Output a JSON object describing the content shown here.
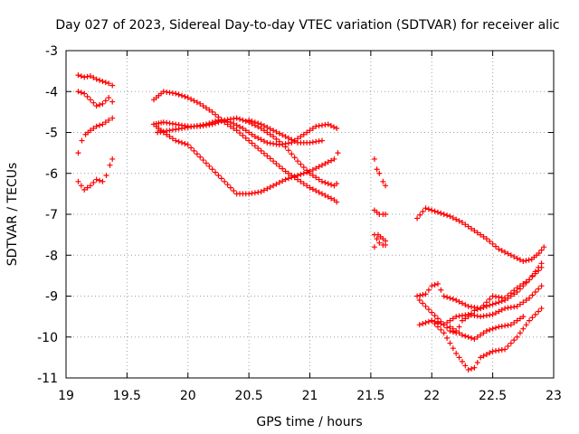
{
  "chart_data": {
    "type": "scatter",
    "title": "Day 027 of 2023, Sidereal Day-to-day VTEC variation (SDTVAR) for receiver alic",
    "xlabel": "GPS time / hours",
    "ylabel": "SDTVAR / TECUs",
    "xlim": [
      19,
      23
    ],
    "ylim": [
      -11,
      -3
    ],
    "xticks": [
      19,
      19.5,
      20,
      20.5,
      21,
      21.5,
      22,
      22.5,
      23
    ],
    "xtick_labels": [
      "19",
      "19.5",
      "20",
      "20.5",
      "21",
      "21.5",
      "22",
      "22.5",
      "23"
    ],
    "yticks": [
      -11,
      -10,
      -9,
      -8,
      -7,
      -6,
      -5,
      -4,
      -3
    ],
    "ytick_labels": [
      "-11",
      "-10",
      "-9",
      "-8",
      "-7",
      "-6",
      "-5",
      "-4",
      "-3"
    ],
    "grid": true,
    "marker": "+",
    "marker_color": "#ff0000",
    "series": [
      {
        "name": "a1",
        "x": [
          19.1,
          19.15,
          19.2,
          19.25,
          19.3,
          19.35,
          19.38
        ],
        "y": [
          -3.6,
          -3.65,
          -3.62,
          -3.7,
          -3.75,
          -3.8,
          -3.85
        ]
      },
      {
        "name": "a2",
        "x": [
          19.1,
          19.15,
          19.2,
          19.25,
          19.3,
          19.35,
          19.38
        ],
        "y": [
          -4.0,
          -4.05,
          -4.2,
          -4.35,
          -4.3,
          -4.15,
          -4.25
        ]
      },
      {
        "name": "a3",
        "x": [
          19.1,
          19.13,
          19.16,
          19.2,
          19.25,
          19.3,
          19.35,
          19.38
        ],
        "y": [
          -5.5,
          -5.2,
          -5.05,
          -4.95,
          -4.85,
          -4.8,
          -4.7,
          -4.65
        ]
      },
      {
        "name": "a4",
        "x": [
          19.1,
          19.15,
          19.2,
          19.25,
          19.3,
          19.33,
          19.36,
          19.38
        ],
        "y": [
          -6.2,
          -6.4,
          -6.3,
          -6.15,
          -6.2,
          -6.05,
          -5.8,
          -5.65
        ]
      },
      {
        "name": "b1",
        "x": [
          19.72,
          19.8,
          19.9,
          20.0,
          20.1,
          20.2,
          20.3,
          20.4,
          20.5,
          20.6,
          20.7,
          20.8,
          20.9,
          21.0,
          21.1,
          21.2,
          21.22
        ],
        "y": [
          -4.2,
          -4.0,
          -4.05,
          -4.15,
          -4.3,
          -4.5,
          -4.75,
          -4.95,
          -5.2,
          -5.45,
          -5.7,
          -5.95,
          -6.15,
          -6.35,
          -6.5,
          -6.65,
          -6.7
        ]
      },
      {
        "name": "b2",
        "x": [
          19.72,
          19.8,
          19.9,
          20.0,
          20.1,
          20.2,
          20.3,
          20.4,
          20.5,
          20.6,
          20.7,
          20.8,
          20.9,
          21.0,
          21.1,
          21.2,
          21.22
        ],
        "y": [
          -4.8,
          -4.75,
          -4.8,
          -4.85,
          -4.85,
          -4.8,
          -4.7,
          -4.65,
          -4.75,
          -4.9,
          -5.1,
          -5.35,
          -5.7,
          -6.0,
          -6.2,
          -6.3,
          -6.25
        ]
      },
      {
        "name": "b3",
        "x": [
          19.72,
          19.8,
          19.9,
          20.0,
          20.1,
          20.2,
          20.3,
          20.4,
          20.5,
          20.6,
          20.7,
          20.8,
          20.9,
          21.0,
          21.1,
          21.2,
          21.23
        ],
        "y": [
          -4.8,
          -5.0,
          -5.2,
          -5.3,
          -5.6,
          -5.9,
          -6.2,
          -6.5,
          -6.5,
          -6.45,
          -6.3,
          -6.15,
          -6.05,
          -5.95,
          -5.8,
          -5.65,
          -5.5
        ]
      },
      {
        "name": "b4",
        "x": [
          19.75,
          19.85,
          19.95,
          20.05,
          20.15,
          20.25,
          20.35,
          20.45,
          20.55,
          20.65,
          20.75,
          20.85,
          20.95,
          21.05,
          21.15,
          21.22
        ],
        "y": [
          -5.0,
          -4.95,
          -4.9,
          -4.85,
          -4.8,
          -4.7,
          -4.75,
          -4.9,
          -5.1,
          -5.25,
          -5.3,
          -5.25,
          -5.05,
          -4.85,
          -4.8,
          -4.9
        ]
      },
      {
        "name": "b5",
        "x": [
          20.5,
          20.6,
          20.7,
          20.8,
          20.9,
          21.0,
          21.1
        ],
        "y": [
          -4.7,
          -4.8,
          -4.95,
          -5.1,
          -5.25,
          -5.25,
          -5.2
        ]
      },
      {
        "name": "c1",
        "x": [
          21.53,
          21.55,
          21.57,
          21.6,
          21.62
        ],
        "y": [
          -5.65,
          -5.9,
          -6.0,
          -6.2,
          -6.3
        ]
      },
      {
        "name": "c2",
        "x": [
          21.53,
          21.55,
          21.57,
          21.6,
          21.62
        ],
        "y": [
          -6.9,
          -6.95,
          -7.0,
          -7.0,
          -7.0
        ]
      },
      {
        "name": "c3",
        "x": [
          21.53,
          21.55,
          21.57,
          21.6,
          21.62
        ],
        "y": [
          -7.5,
          -7.6,
          -7.7,
          -7.75,
          -7.65
        ]
      },
      {
        "name": "c4",
        "x": [
          21.53,
          21.56,
          21.6,
          21.62
        ],
        "y": [
          -7.8,
          -7.5,
          -7.6,
          -7.75
        ]
      },
      {
        "name": "d1",
        "x": [
          21.88,
          21.95,
          22.05,
          22.15,
          22.25,
          22.35,
          22.45,
          22.55,
          22.65,
          22.75,
          22.82,
          22.88,
          22.92
        ],
        "y": [
          -7.1,
          -6.85,
          -6.95,
          -7.05,
          -7.2,
          -7.4,
          -7.6,
          -7.85,
          -8.0,
          -8.15,
          -8.1,
          -7.95,
          -7.8
        ]
      },
      {
        "name": "d2",
        "x": [
          21.88,
          21.95,
          22.0,
          22.05,
          22.1,
          22.2,
          22.3,
          22.4,
          22.5,
          22.6,
          22.7,
          22.8,
          22.9
        ],
        "y": [
          -9.0,
          -8.95,
          -8.75,
          -8.7,
          -9.0,
          -9.1,
          -9.25,
          -9.3,
          -9.0,
          -9.05,
          -8.8,
          -8.6,
          -8.3
        ]
      },
      {
        "name": "d3",
        "x": [
          21.9,
          22.0,
          22.1,
          22.2,
          22.3,
          22.4,
          22.5,
          22.6,
          22.7,
          22.8,
          22.9
        ],
        "y": [
          -9.7,
          -9.6,
          -9.7,
          -9.5,
          -9.45,
          -9.5,
          -9.45,
          -9.3,
          -9.25,
          -9.05,
          -8.75
        ]
      },
      {
        "name": "d4",
        "x": [
          21.9,
          22.0,
          22.1,
          22.15,
          22.2,
          22.25,
          22.3,
          22.35,
          22.4,
          22.5,
          22.6,
          22.7,
          22.8,
          22.9
        ],
        "y": [
          -9.1,
          -9.4,
          -9.7,
          -9.85,
          -9.9,
          -9.6,
          -9.5,
          -9.35,
          -9.3,
          -9.2,
          -9.1,
          -8.9,
          -8.6,
          -8.2
        ]
      },
      {
        "name": "d5",
        "x": [
          22.0,
          22.1,
          22.2,
          22.25,
          22.3,
          22.35,
          22.4,
          22.5,
          22.6,
          22.7,
          22.8,
          22.9
        ],
        "y": [
          -9.6,
          -9.9,
          -10.4,
          -10.6,
          -10.8,
          -10.75,
          -10.5,
          -10.35,
          -10.3,
          -10.0,
          -9.6,
          -9.3
        ]
      },
      {
        "name": "d6",
        "x": [
          22.15,
          22.25,
          22.35,
          22.45,
          22.55,
          22.65,
          22.75
        ],
        "y": [
          -9.75,
          -9.95,
          -10.05,
          -9.85,
          -9.75,
          -9.7,
          -9.5
        ]
      }
    ]
  }
}
